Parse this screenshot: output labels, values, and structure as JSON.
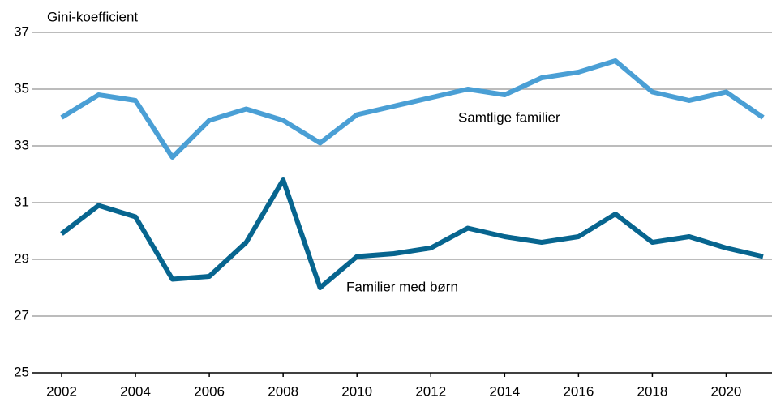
{
  "chart_data": {
    "type": "line",
    "y_label": "Gini-koefficient",
    "x": [
      2002,
      2003,
      2004,
      2005,
      2006,
      2007,
      2008,
      2009,
      2010,
      2011,
      2012,
      2013,
      2014,
      2015,
      2016,
      2017,
      2018,
      2019,
      2020,
      2021
    ],
    "series": [
      {
        "name": "Samtlige familier",
        "color": "#4a9fd5",
        "values": [
          34.0,
          34.8,
          34.6,
          32.6,
          33.9,
          34.3,
          33.9,
          33.1,
          34.1,
          34.4,
          34.7,
          35.0,
          34.8,
          35.4,
          35.6,
          36.0,
          34.9,
          34.6,
          34.9,
          34.0
        ]
      },
      {
        "name": "Familier med børn",
        "color": "#07658f",
        "values": [
          29.9,
          30.9,
          30.5,
          28.3,
          28.4,
          29.6,
          31.8,
          28.0,
          29.1,
          29.2,
          29.4,
          30.1,
          29.8,
          29.6,
          29.8,
          30.6,
          29.6,
          29.8,
          29.4,
          29.1
        ]
      }
    ],
    "xlim": [
      2002,
      2021
    ],
    "xticks": [
      2002,
      2004,
      2006,
      2008,
      2010,
      2012,
      2014,
      2016,
      2018,
      2020
    ],
    "ylim": [
      25,
      37
    ],
    "yticks": [
      25,
      27,
      29,
      31,
      33,
      35,
      37
    ],
    "grid": true
  }
}
